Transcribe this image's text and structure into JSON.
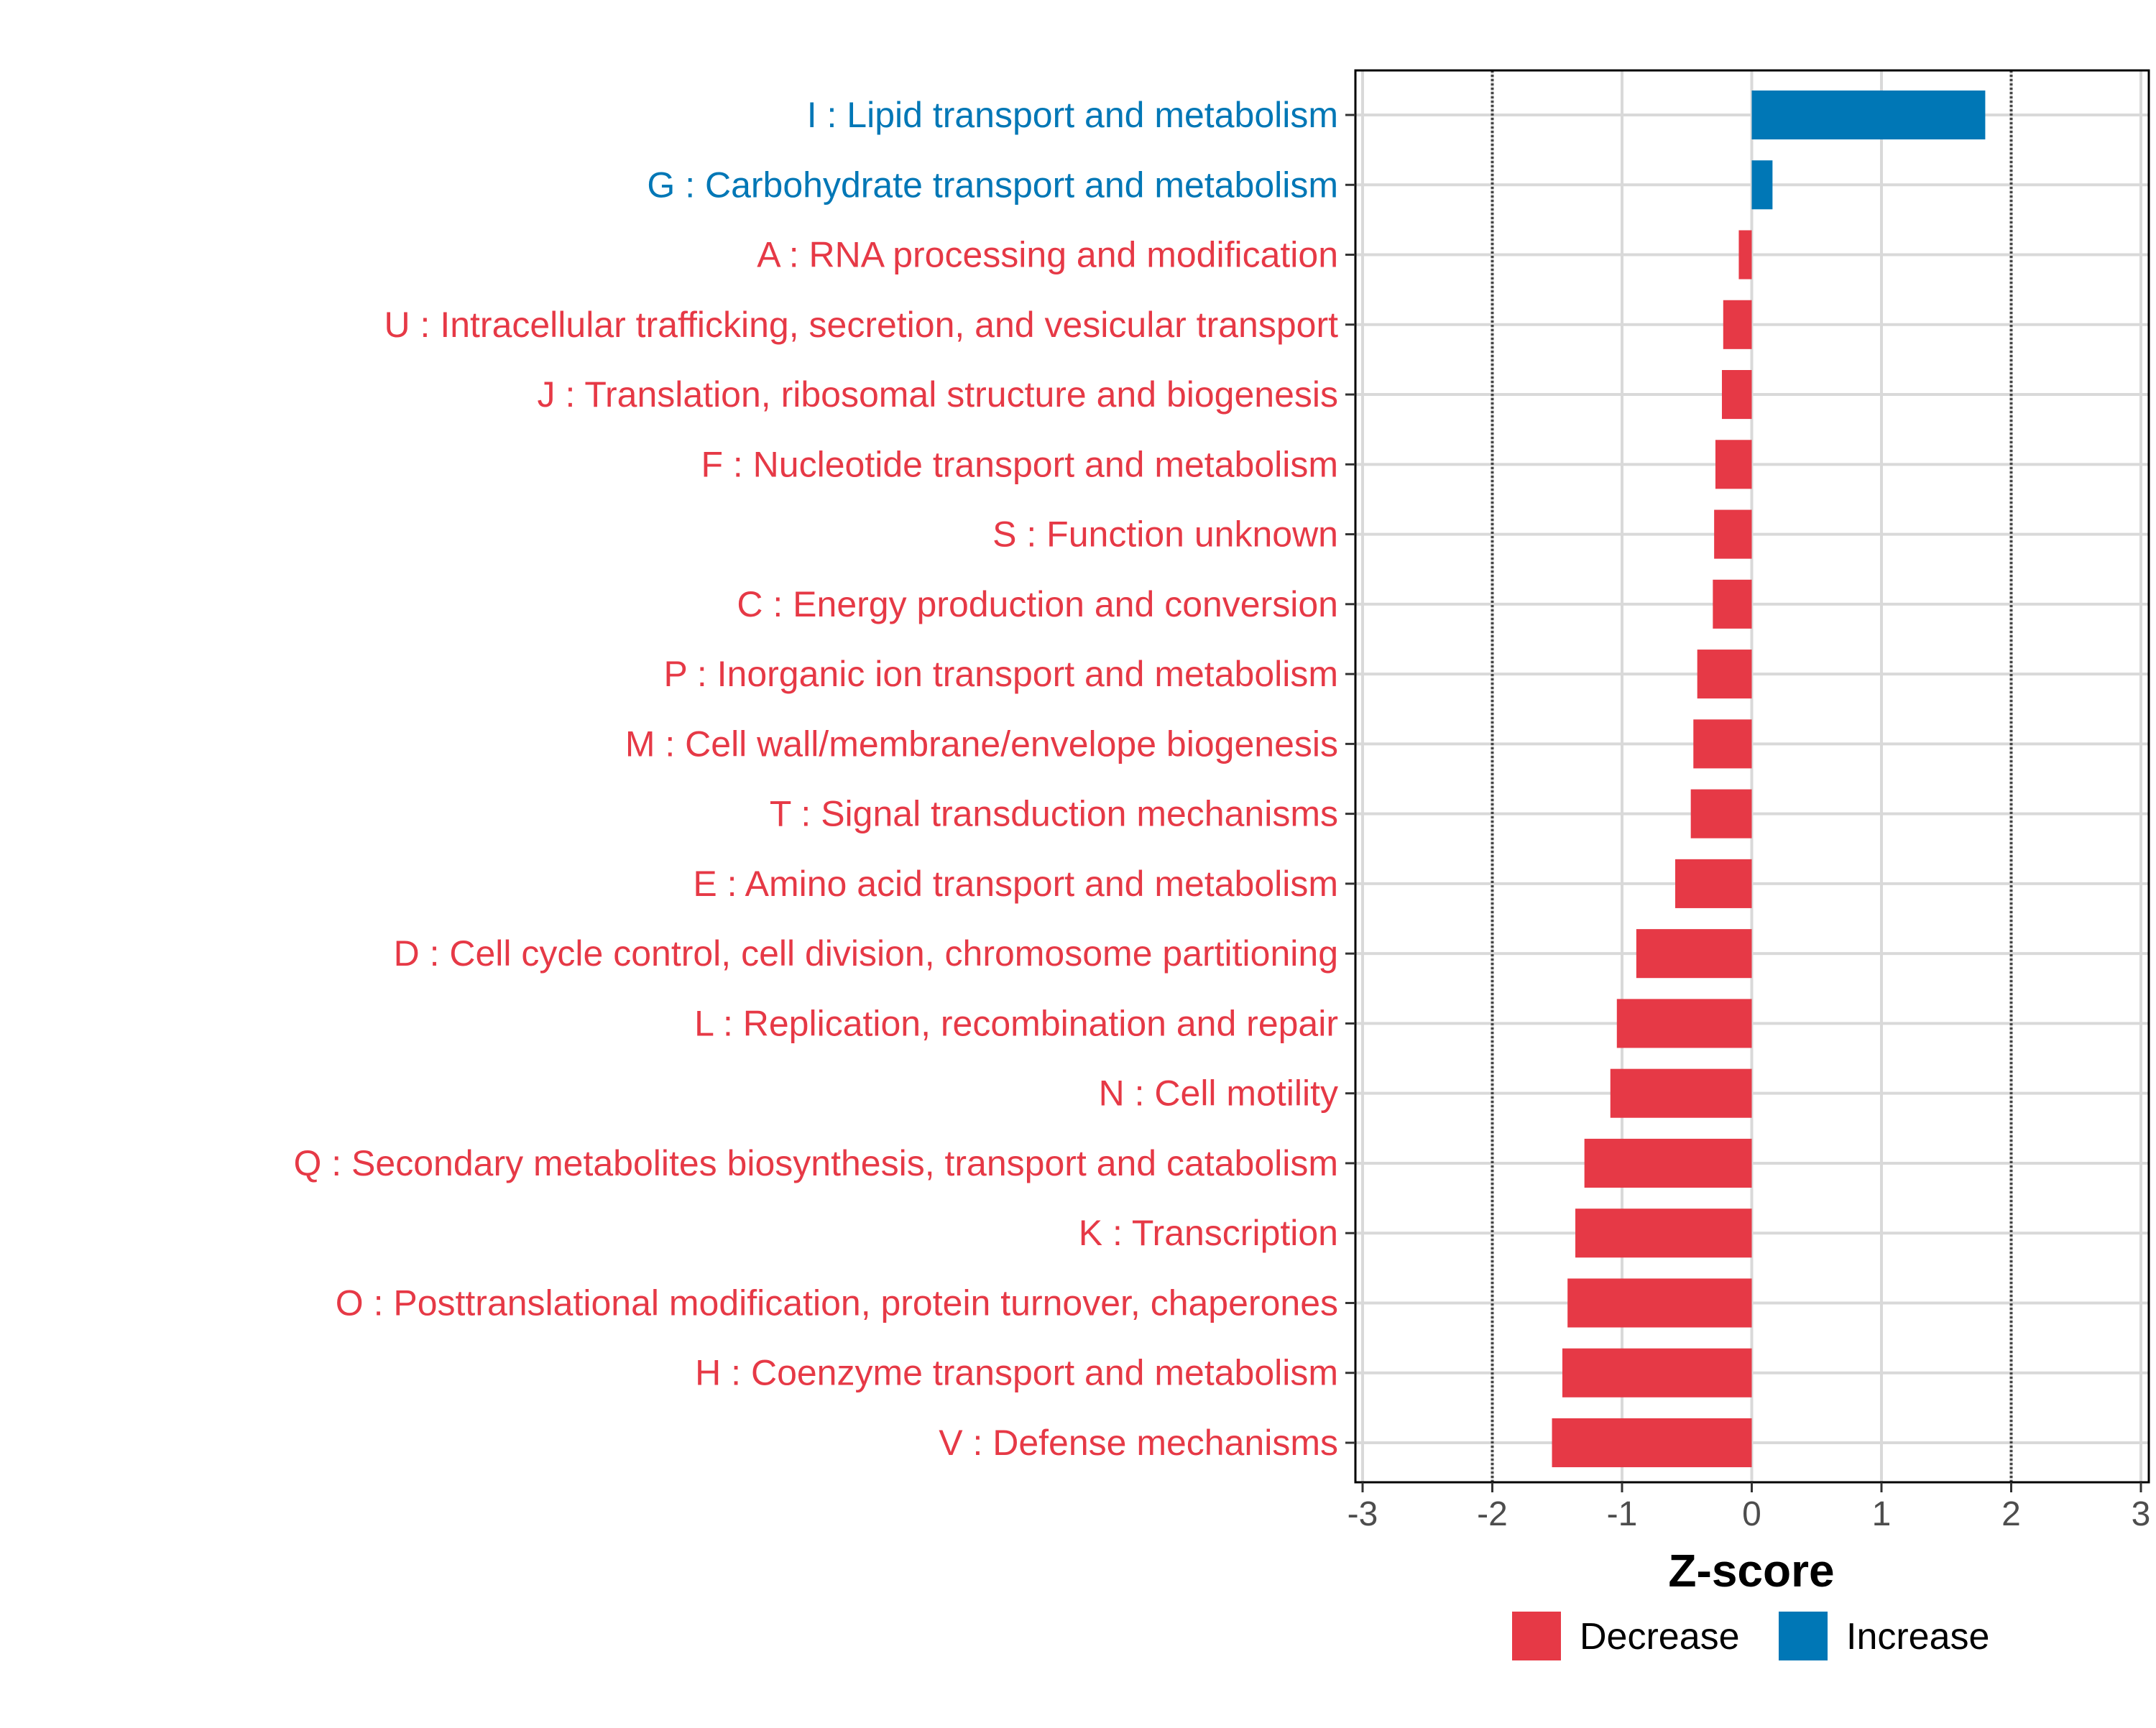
{
  "chart_data": {
    "type": "bar",
    "orientation": "horizontal",
    "xlabel": "Z-score",
    "ylabel": "",
    "xlim": [
      -3,
      3
    ],
    "xticks": [
      -3,
      -2,
      -1,
      0,
      1,
      2,
      3
    ],
    "xtick_labels": [
      "-3",
      "-2",
      "-1",
      "0",
      "1",
      "2",
      "3"
    ],
    "reference_lines": [
      -2,
      2
    ],
    "grid": true,
    "legend_position": "bottom",
    "colors": {
      "Decrease": "#E63946",
      "Increase": "#0077B6"
    },
    "legend": [
      {
        "label": "Decrease",
        "color": "#E63946"
      },
      {
        "label": "Increase",
        "color": "#0077B6"
      }
    ],
    "categories": [
      "I : Lipid transport and metabolism",
      "G : Carbohydrate transport and metabolism",
      "A : RNA processing and modification",
      "U : Intracellular trafficking, secretion, and vesicular transport",
      "J : Translation, ribosomal structure and biogenesis",
      "F : Nucleotide transport and metabolism",
      "S : Function unknown",
      "C : Energy production and conversion",
      "P : Inorganic ion transport and metabolism",
      "M : Cell wall/membrane/envelope biogenesis",
      "T : Signal transduction mechanisms",
      "E : Amino acid transport and metabolism",
      "D : Cell cycle control, cell division, chromosome partitioning",
      "L : Replication, recombination and repair",
      "N : Cell motility",
      "Q : Secondary metabolites biosynthesis, transport and catabolism",
      "K : Transcription",
      "O : Posttranslational modification, protein turnover, chaperones",
      "H : Coenzyme transport and metabolism",
      "V : Defense mechanisms"
    ],
    "values": [
      1.8,
      0.16,
      -0.1,
      -0.22,
      -0.23,
      -0.28,
      -0.29,
      -0.3,
      -0.42,
      -0.45,
      -0.47,
      -0.59,
      -0.89,
      -1.04,
      -1.09,
      -1.29,
      -1.36,
      -1.42,
      -1.46,
      -1.54
    ]
  }
}
